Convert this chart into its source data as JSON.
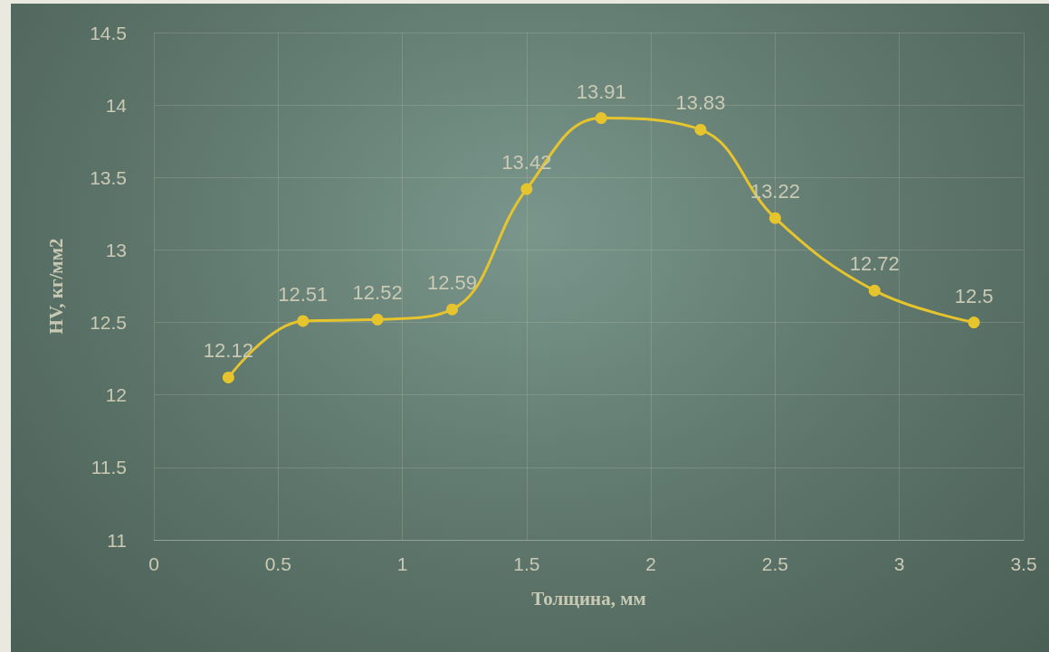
{
  "chart_data": {
    "type": "line",
    "xlabel": "Толщина, мм",
    "ylabel": "HV, кг/мм2",
    "x": [
      0.3,
      0.6,
      0.9,
      1.2,
      1.5,
      1.8,
      2.2,
      2.5,
      2.9,
      3.3
    ],
    "series": [
      {
        "color": "#e6c42e",
        "values": [
          12.12,
          12.51,
          12.52,
          12.59,
          13.42,
          13.91,
          13.83,
          13.22,
          12.72,
          12.5
        ]
      }
    ],
    "xlim": [
      0,
      3.5
    ],
    "xticks": [
      0,
      0.5,
      1,
      1.5,
      2,
      2.5,
      3,
      3.5
    ],
    "ylim": [
      11,
      14.5
    ],
    "yticks": [
      11,
      11.5,
      12,
      12.5,
      13,
      13.5,
      14,
      14.5
    ],
    "grid": true,
    "marker": "circle",
    "data_labels": true
  }
}
